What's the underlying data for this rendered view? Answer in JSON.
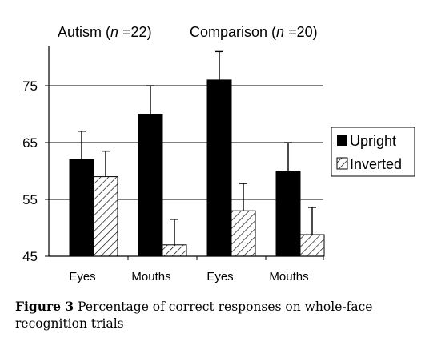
{
  "chart_data": {
    "type": "bar",
    "groups": [
      {
        "label_prefix": "Autism (",
        "label_n": "n",
        "label_suffix": " =22)"
      },
      {
        "label_prefix": "Comparison (",
        "label_n": "n",
        "label_suffix": " =20)"
      }
    ],
    "categories": [
      "Eyes",
      "Mouths",
      "Eyes",
      "Mouths"
    ],
    "series": [
      {
        "name": "Upright",
        "values": [
          62,
          70,
          76,
          60
        ],
        "error": [
          5,
          5,
          5,
          5
        ],
        "fill": "solid-black"
      },
      {
        "name": "Inverted",
        "values": [
          59,
          47,
          53,
          48.8
        ],
        "error": [
          4.5,
          4.5,
          4.8,
          4.8
        ],
        "fill": "diagonal-hatch"
      }
    ],
    "ylim": [
      45,
      82
    ],
    "yticks": [
      45,
      55,
      65,
      75
    ],
    "grid": true,
    "legend_position": "right"
  },
  "caption": {
    "bold": "Figure 3",
    "text": "Percentage of correct responses on whole-face recognition trials"
  },
  "colors": {
    "bar_solid": "#000000",
    "hatch": "#000000",
    "background": "#ffffff"
  }
}
